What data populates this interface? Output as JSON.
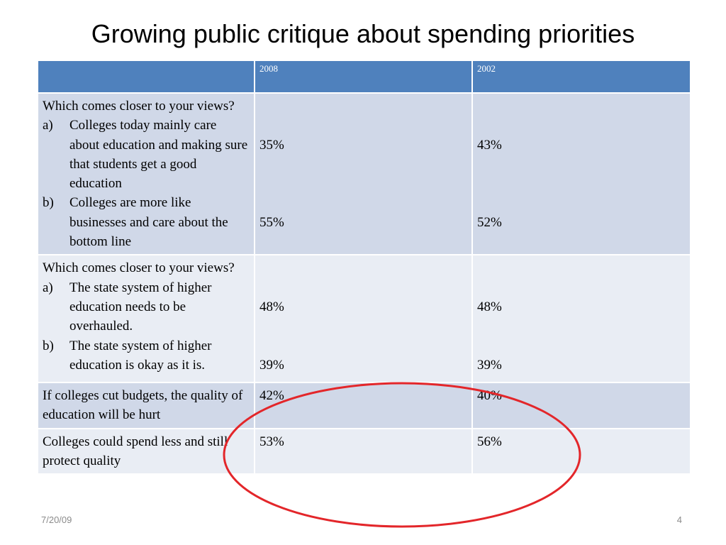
{
  "slide": {
    "title": "Growing  public critique about spending priorities",
    "footer_date": "7/20/09",
    "page_number": "4"
  },
  "table": {
    "headers": [
      "",
      "2008",
      "2002"
    ],
    "rows": [
      {
        "question": "Which comes closer to your views?",
        "options": [
          {
            "letter": "a)",
            "text": "Colleges today mainly care about education and making sure that students get a good education",
            "v2008": "35%",
            "v2002": "43%"
          },
          {
            "letter": "b)",
            "text": "Colleges are more like businesses and care about the bottom line",
            "v2008": "55%",
            "v2002": "52%"
          }
        ]
      },
      {
        "question": "Which comes closer to your views?",
        "options": [
          {
            "letter": "a)",
            "text": "The state system of higher education needs to be overhauled.",
            "v2008": "48%",
            "v2002": "48%"
          },
          {
            "letter": "b)",
            "text": "The state system of higher education is okay as it is.",
            "v2008": "39%",
            "v2002": "39%"
          }
        ]
      },
      {
        "statement": "If colleges cut budgets, the quality of education will be hurt",
        "v2008": "42%",
        "v2002": "40%"
      },
      {
        "statement": "Colleges could spend less and still protect quality",
        "v2008": "53%",
        "v2002": "56%"
      }
    ]
  },
  "colors": {
    "header_fill": "#4f81bd",
    "band_dark": "#d0d8e8",
    "band_light": "#e9edf4",
    "annotation": "#e3262a"
  }
}
